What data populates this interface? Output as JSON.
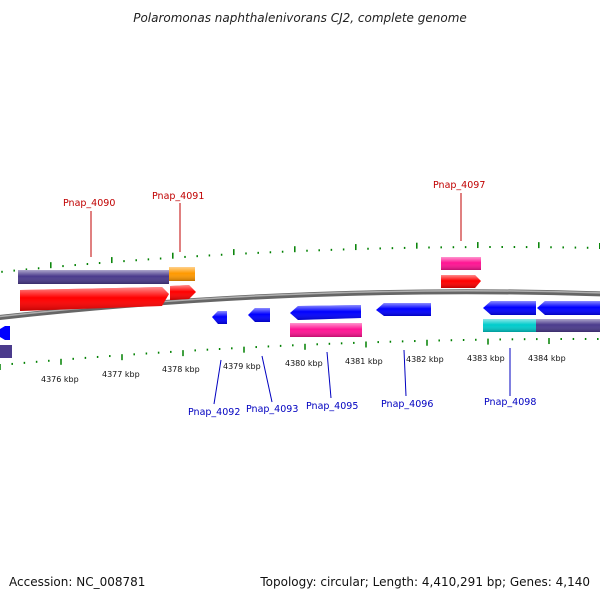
{
  "title": "Polaromonas naphthalenivorans CJ2, complete genome",
  "accession": "Accession: NC_008781",
  "topology": "Topology: circular; Length: 4,410,291 bp; Genes: 4,140",
  "scale_labels": [
    "4376 kbp",
    "4377 kbp",
    "4378 kbp",
    "4379 kbp",
    "4380 kbp",
    "4381 kbp",
    "4382 kbp",
    "4383 kbp",
    "4384 kbp"
  ],
  "genes_top": [
    {
      "name": "Pnap_4090"
    },
    {
      "name": "Pnap_4091"
    },
    {
      "name": "Pnap_4097"
    }
  ],
  "genes_bottom": [
    {
      "name": "Pnap_4092"
    },
    {
      "name": "Pnap_4093"
    },
    {
      "name": "Pnap_4095"
    },
    {
      "name": "Pnap_4096"
    },
    {
      "name": "Pnap_4098"
    }
  ],
  "colors": {
    "forward_cds": "#ff0000",
    "reverse_cds": "#0000ff",
    "gene_feature": "#4b3b8c",
    "orange_feature": "#ff9900",
    "magenta_feature": "#ff1493",
    "cyan_feature": "#00cccc",
    "backbone": "#808080",
    "tick": "#008000",
    "label_top": "#c00000",
    "label_bottom": "#0000c0"
  }
}
